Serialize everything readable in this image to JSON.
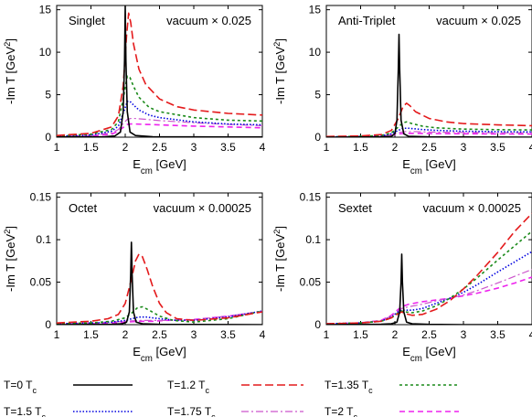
{
  "chart_data": [
    {
      "type": "line",
      "panel_label": "Singlet",
      "annotation": "vacuum × 0.025",
      "xlabel": "E_cm [GeV]",
      "ylabel": "-Im T [GeV^2]",
      "xlim": [
        1,
        4
      ],
      "ylim": [
        0,
        15.5
      ],
      "xticks": [
        "1",
        "1.5",
        "2",
        "2.5",
        "3",
        "3.5",
        "4"
      ],
      "yticks": [
        0,
        5,
        10,
        15
      ],
      "ytick_labels": [
        "0",
        "5",
        "10",
        "15"
      ],
      "series": [
        {
          "name": "T=0 T_c",
          "x": [
            1,
            1.7,
            1.85,
            1.93,
            1.97,
            1.99,
            2.0,
            2.01,
            2.03,
            2.07,
            2.15,
            2.4,
            3,
            4
          ],
          "y": [
            0.02,
            0.05,
            0.15,
            0.6,
            3,
            9,
            15.4,
            9,
            3,
            0.6,
            0.2,
            0.05,
            0.03,
            0.02
          ]
        },
        {
          "name": "T=1.2 T_c",
          "x": [
            1,
            1.5,
            1.8,
            1.9,
            1.97,
            2.02,
            2.05,
            2.08,
            2.12,
            2.2,
            2.3,
            2.5,
            2.75,
            3,
            3.5,
            4
          ],
          "y": [
            0.2,
            0.45,
            1.2,
            2.5,
            6,
            12,
            14.6,
            13.5,
            11,
            8,
            6.2,
            4.5,
            3.6,
            3.2,
            2.8,
            2.6
          ]
        },
        {
          "name": "T=1.35 T_c",
          "x": [
            1,
            1.5,
            1.8,
            1.9,
            1.97,
            2.03,
            2.07,
            2.12,
            2.2,
            2.35,
            2.5,
            3,
            3.5,
            4
          ],
          "y": [
            0.15,
            0.35,
            0.9,
            1.8,
            4.5,
            7.2,
            7,
            6,
            4.7,
            3.5,
            3,
            2.3,
            2,
            1.9
          ]
        },
        {
          "name": "T=1.5 T_c",
          "x": [
            1,
            1.5,
            1.8,
            1.9,
            1.97,
            2.03,
            2.07,
            2.12,
            2.2,
            2.35,
            2.5,
            3,
            3.5,
            4
          ],
          "y": [
            0.1,
            0.25,
            0.7,
            1.3,
            2.8,
            4.2,
            4.2,
            3.8,
            3.2,
            2.6,
            2.3,
            1.8,
            1.55,
            1.45
          ]
        },
        {
          "name": "T=1.75 T_c",
          "x": [
            1,
            1.5,
            1.8,
            1.9,
            1.97,
            2.03,
            2.08,
            2.15,
            2.3,
            2.5,
            3,
            3.5,
            4
          ],
          "y": [
            0.08,
            0.2,
            0.5,
            0.9,
            1.6,
            2.1,
            2.2,
            2.2,
            2.1,
            1.95,
            1.7,
            1.5,
            1.35
          ]
        },
        {
          "name": "T=2 T_c",
          "x": [
            1,
            1.5,
            1.8,
            1.9,
            1.97,
            2.03,
            2.08,
            2.15,
            2.3,
            2.5,
            3,
            3.5,
            4
          ],
          "y": [
            0.05,
            0.15,
            0.35,
            0.7,
            1.15,
            1.5,
            1.55,
            1.55,
            1.5,
            1.45,
            1.3,
            1.2,
            1.1
          ]
        }
      ]
    },
    {
      "type": "line",
      "panel_label": "Anti-Triplet",
      "annotation": "vacuum × 0.025",
      "xlabel": "E_cm [GeV]",
      "ylabel": "-Im T [GeV^2]",
      "xlim": [
        1,
        4
      ],
      "ylim": [
        0,
        15.5
      ],
      "xticks": [
        "1",
        "1.5",
        "2",
        "2.5",
        "3",
        "3.5",
        "4"
      ],
      "yticks": [
        0,
        5,
        10,
        15
      ],
      "ytick_labels": [
        "0",
        "5",
        "10",
        "15"
      ],
      "series": [
        {
          "name": "T=0 T_c",
          "x": [
            1,
            1.8,
            1.95,
            2.0,
            2.03,
            2.05,
            2.06,
            2.07,
            2.09,
            2.13,
            2.2,
            2.5,
            4
          ],
          "y": [
            0,
            0.03,
            0.1,
            0.4,
            2,
            8,
            12.1,
            8,
            2,
            0.4,
            0.1,
            0.03,
            0
          ]
        },
        {
          "name": "T=1.2 T_c",
          "x": [
            1,
            1.5,
            1.8,
            1.95,
            2.05,
            2.12,
            2.17,
            2.22,
            2.3,
            2.5,
            2.75,
            3,
            3.5,
            4
          ],
          "y": [
            0.08,
            0.15,
            0.3,
            0.8,
            2.2,
            3.6,
            4,
            3.7,
            3,
            2.2,
            1.8,
            1.6,
            1.45,
            1.35
          ]
        },
        {
          "name": "T=1.35 T_c",
          "x": [
            1,
            1.5,
            1.8,
            1.95,
            2.05,
            2.12,
            2.17,
            2.25,
            2.4,
            2.6,
            3,
            3.5,
            4
          ],
          "y": [
            0.05,
            0.1,
            0.2,
            0.5,
            1.2,
            1.7,
            1.8,
            1.6,
            1.3,
            1.1,
            0.95,
            0.88,
            0.85
          ]
        },
        {
          "name": "T=1.5 T_c",
          "x": [
            1,
            1.5,
            1.8,
            1.95,
            2.05,
            2.12,
            2.2,
            2.4,
            2.6,
            3,
            3.5,
            4
          ],
          "y": [
            0.04,
            0.08,
            0.15,
            0.4,
            0.8,
            1.05,
            1.05,
            0.9,
            0.8,
            0.7,
            0.65,
            0.62
          ]
        },
        {
          "name": "T=1.75 T_c",
          "x": [
            1,
            1.5,
            1.8,
            1.95,
            2.05,
            2.15,
            2.3,
            2.5,
            3,
            3.5,
            4
          ],
          "y": [
            0.03,
            0.06,
            0.12,
            0.3,
            0.55,
            0.65,
            0.65,
            0.6,
            0.55,
            0.52,
            0.5
          ]
        },
        {
          "name": "T=2 T_c",
          "x": [
            1,
            1.5,
            1.8,
            1.95,
            2.05,
            2.15,
            2.3,
            2.5,
            3,
            3.5,
            4
          ],
          "y": [
            0.02,
            0.04,
            0.1,
            0.22,
            0.38,
            0.45,
            0.45,
            0.43,
            0.4,
            0.38,
            0.37
          ]
        }
      ]
    },
    {
      "type": "line",
      "panel_label": "Octet",
      "annotation": "vacuum × 0.00025",
      "xlabel": "E_cm [GeV]",
      "ylabel": "-Im T [GeV^2]",
      "xlim": [
        1,
        4
      ],
      "ylim": [
        0,
        0.155
      ],
      "xticks": [
        "1",
        "1.5",
        "2",
        "2.5",
        "3",
        "3.5",
        "4"
      ],
      "yticks": [
        0,
        0.05,
        0.1,
        0.15
      ],
      "ytick_labels": [
        "0",
        "0.05",
        "0.1",
        "0.15"
      ],
      "series": [
        {
          "name": "T=0 T_c",
          "x": [
            1,
            1.8,
            1.95,
            2.02,
            2.06,
            2.08,
            2.09,
            2.1,
            2.12,
            2.16,
            2.25,
            2.5,
            4
          ],
          "y": [
            0,
            0.0005,
            0.001,
            0.003,
            0.015,
            0.06,
            0.097,
            0.06,
            0.015,
            0.003,
            0.001,
            0.0003,
            0
          ]
        },
        {
          "name": "T=1.2 T_c",
          "x": [
            1,
            1.5,
            1.75,
            1.9,
            2.0,
            2.08,
            2.15,
            2.2,
            2.25,
            2.32,
            2.4,
            2.5,
            2.6,
            2.75,
            3,
            3.5,
            4
          ],
          "y": [
            0.002,
            0.004,
            0.007,
            0.012,
            0.025,
            0.05,
            0.075,
            0.083,
            0.08,
            0.065,
            0.045,
            0.025,
            0.014,
            0.007,
            0.005,
            0.008,
            0.015
          ]
        },
        {
          "name": "T=1.35 T_c",
          "x": [
            1,
            1.5,
            1.8,
            2.0,
            2.1,
            2.18,
            2.25,
            2.35,
            2.5,
            2.7,
            3,
            3.5,
            4
          ],
          "y": [
            0.001,
            0.002,
            0.004,
            0.008,
            0.014,
            0.02,
            0.021,
            0.017,
            0.01,
            0.005,
            0.003,
            0.007,
            0.016
          ]
        },
        {
          "name": "T=1.5 T_c",
          "x": [
            1,
            1.5,
            1.8,
            2.0,
            2.1,
            2.2,
            2.3,
            2.5,
            2.75,
            3,
            3.5,
            4
          ],
          "y": [
            0.001,
            0.002,
            0.003,
            0.005,
            0.007,
            0.009,
            0.009,
            0.007,
            0.005,
            0.005,
            0.009,
            0.016
          ]
        },
        {
          "name": "T=1.75 T_c",
          "x": [
            1,
            1.5,
            1.8,
            2.0,
            2.2,
            2.4,
            2.6,
            3,
            3.5,
            4
          ],
          "y": [
            0.001,
            0.002,
            0.003,
            0.004,
            0.005,
            0.005,
            0.005,
            0.006,
            0.01,
            0.016
          ]
        },
        {
          "name": "T=2 T_c",
          "x": [
            1,
            1.5,
            1.8,
            2.0,
            2.2,
            2.4,
            2.6,
            3,
            3.5,
            4
          ],
          "y": [
            0.001,
            0.001,
            0.002,
            0.003,
            0.004,
            0.004,
            0.005,
            0.006,
            0.01,
            0.015
          ]
        }
      ]
    },
    {
      "type": "line",
      "panel_label": "Sextet",
      "annotation": "vacuum × 0.00025",
      "xlabel": "E_cm [GeV]",
      "ylabel": "-Im T [GeV^2]",
      "xlim": [
        1,
        4
      ],
      "ylim": [
        0,
        0.155
      ],
      "xticks": [
        "1",
        "1.5",
        "2",
        "2.5",
        "3",
        "3.5",
        "4"
      ],
      "yticks": [
        0,
        0.05,
        0.1,
        0.15
      ],
      "ytick_labels": [
        "0",
        "0.05",
        "0.1",
        "0.15"
      ],
      "series": [
        {
          "name": "T=0 T_c",
          "x": [
            1,
            1.8,
            1.95,
            2.03,
            2.07,
            2.09,
            2.1,
            2.11,
            2.13,
            2.17,
            2.25,
            2.5,
            3,
            3.5,
            4
          ],
          "y": [
            0,
            0.0005,
            0.001,
            0.003,
            0.015,
            0.05,
            0.083,
            0.05,
            0.015,
            0.003,
            0.001,
            0.0003,
            0,
            0,
            0
          ]
        },
        {
          "name": "T=1.2 T_c",
          "x": [
            1,
            1.5,
            1.8,
            1.95,
            2.05,
            2.1,
            2.15,
            2.25,
            2.4,
            2.6,
            2.8,
            3,
            3.2,
            3.5,
            3.75,
            4
          ],
          "y": [
            0.001,
            0.002,
            0.004,
            0.008,
            0.013,
            0.015,
            0.013,
            0.011,
            0.012,
            0.018,
            0.028,
            0.042,
            0.058,
            0.085,
            0.11,
            0.131
          ]
        },
        {
          "name": "T=1.35 T_c",
          "x": [
            1,
            1.5,
            1.8,
            1.95,
            2.05,
            2.1,
            2.15,
            2.25,
            2.4,
            2.6,
            2.8,
            3,
            3.2,
            3.5,
            3.75,
            4
          ],
          "y": [
            0.001,
            0.002,
            0.004,
            0.008,
            0.014,
            0.016,
            0.015,
            0.014,
            0.016,
            0.022,
            0.031,
            0.042,
            0.055,
            0.076,
            0.093,
            0.11
          ]
        },
        {
          "name": "T=1.5 T_c",
          "x": [
            1,
            1.5,
            1.8,
            1.95,
            2.05,
            2.1,
            2.15,
            2.25,
            2.4,
            2.6,
            2.8,
            3,
            3.2,
            3.5,
            3.75,
            4
          ],
          "y": [
            0.001,
            0.002,
            0.004,
            0.009,
            0.015,
            0.017,
            0.017,
            0.017,
            0.019,
            0.025,
            0.031,
            0.038,
            0.047,
            0.062,
            0.074,
            0.086
          ]
        },
        {
          "name": "T=1.75 T_c",
          "x": [
            1,
            1.5,
            1.8,
            1.95,
            2.05,
            2.1,
            2.2,
            2.4,
            2.6,
            2.8,
            3,
            3.2,
            3.5,
            3.75,
            4
          ],
          "y": [
            0.001,
            0.002,
            0.005,
            0.01,
            0.016,
            0.019,
            0.021,
            0.024,
            0.028,
            0.031,
            0.035,
            0.04,
            0.049,
            0.057,
            0.065
          ]
        },
        {
          "name": "T=2 T_c",
          "x": [
            1,
            1.5,
            1.8,
            1.95,
            2.05,
            2.1,
            2.2,
            2.4,
            2.6,
            2.8,
            3,
            3.2,
            3.5,
            3.75,
            4
          ],
          "y": [
            0.001,
            0.002,
            0.005,
            0.011,
            0.018,
            0.021,
            0.024,
            0.027,
            0.029,
            0.031,
            0.034,
            0.037,
            0.043,
            0.049,
            0.056
          ]
        }
      ]
    }
  ],
  "legend": {
    "entries": [
      {
        "label": "T=0 T_c",
        "color": "#000000",
        "dash": "solid"
      },
      {
        "label": "T=1.2 T_c",
        "color": "#e41a1c",
        "dash": "long-dash"
      },
      {
        "label": "T=1.35 T_c",
        "color": "#1a8a1a",
        "dash": "short-dash"
      },
      {
        "label": "T=1.5 T_c",
        "color": "#0000e0",
        "dash": "dotted"
      },
      {
        "label": "T=1.75 T_c",
        "color": "#cc55cc",
        "dash": "dash-dot"
      },
      {
        "label": "T=2 T_c",
        "color": "#ee22ee",
        "dash": "dashed"
      }
    ]
  }
}
